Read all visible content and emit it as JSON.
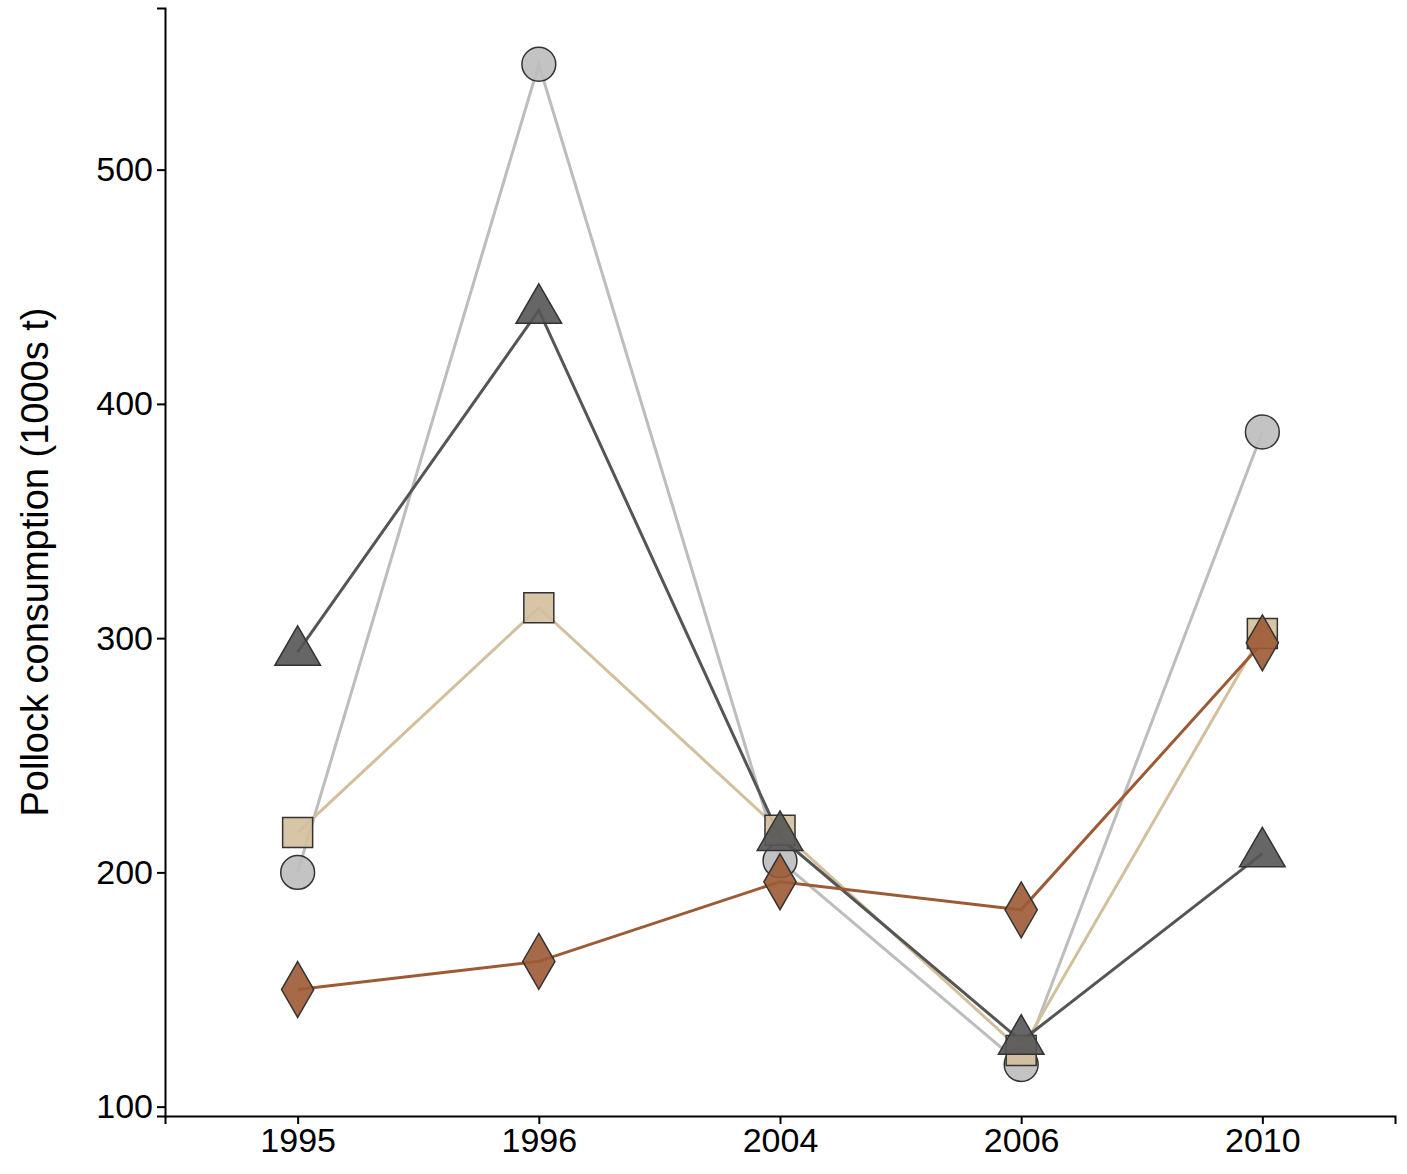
{
  "chart_data": {
    "type": "line",
    "y_label": "Pollock consumption (1000s t)",
    "categories": [
      "1995",
      "1996",
      "2004",
      "2006",
      "2010"
    ],
    "series": [
      {
        "color": "#bdbdbd",
        "marker": "circle",
        "values": [
          200,
          545,
          205,
          118,
          388
        ]
      },
      {
        "color": "#d4bf9c",
        "marker": "square",
        "values": [
          217,
          313,
          218,
          124,
          302
        ]
      },
      {
        "color": "#555555",
        "marker": "triangle",
        "values": [
          294,
          440,
          215,
          128,
          208
        ]
      },
      {
        "color": "#9c5a35",
        "marker": "diamond",
        "values": [
          150,
          162,
          196,
          184,
          298
        ]
      }
    ],
    "ylim": [
      96,
      569
    ],
    "yticks": [
      100,
      200,
      300,
      400,
      500
    ],
    "grid": false
  }
}
